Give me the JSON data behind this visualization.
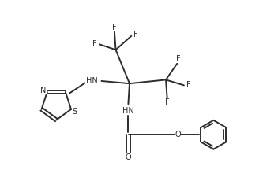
{
  "bg_color": "#ffffff",
  "line_color": "#2d2d2d",
  "line_width": 1.4,
  "font_size": 7.0,
  "figsize": [
    3.28,
    2.25
  ],
  "dpi": 100,
  "xlim": [
    0.0,
    10.0
  ],
  "ylim": [
    0.5,
    7.5
  ]
}
